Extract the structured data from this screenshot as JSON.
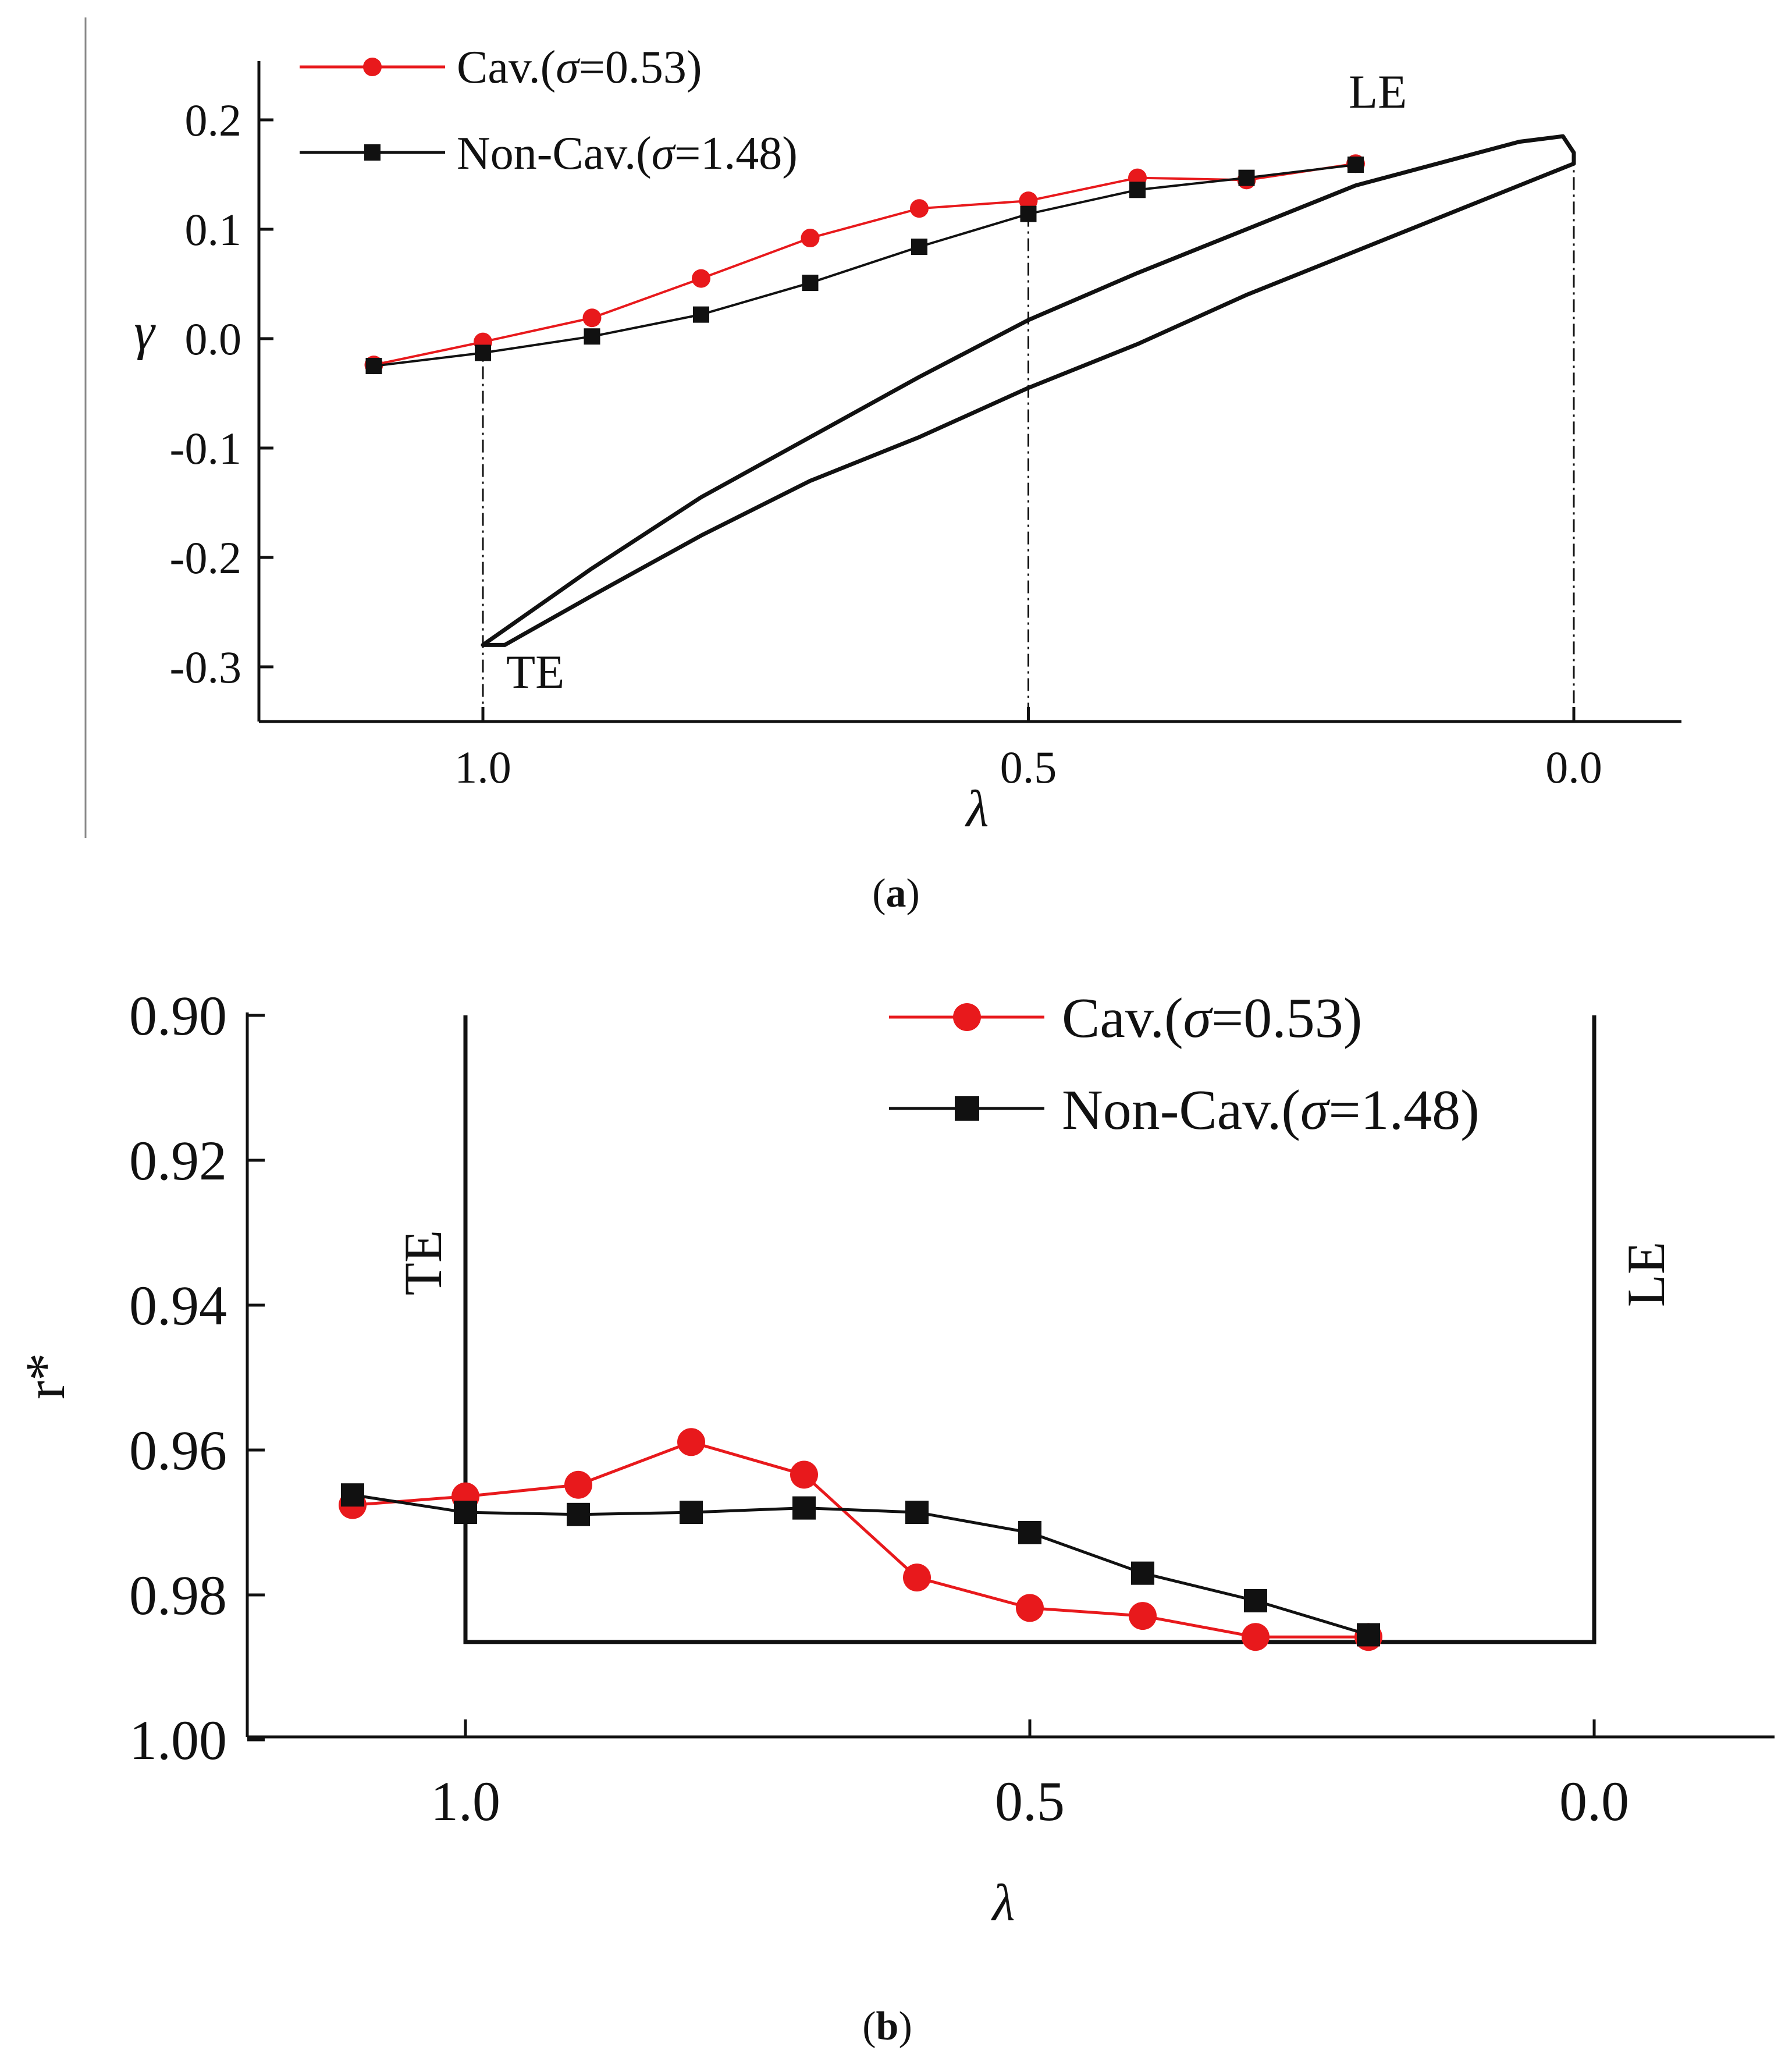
{
  "chart_data": [
    {
      "id": "a",
      "type": "line",
      "panel_label_open": "(",
      "panel_label_letter": "a",
      "panel_label_close": ")",
      "xlabel": "λ",
      "ylabel": "γ",
      "xlim": [
        1.2,
        -0.1
      ],
      "ylim": [
        -0.35,
        0.25
      ],
      "x_ticks": [
        1.0,
        0.5,
        0.0
      ],
      "x_tick_labels": [
        "1.0",
        "0.5",
        "0.0"
      ],
      "y_ticks": [
        0.2,
        0.1,
        0.0,
        -0.1,
        -0.2,
        -0.3
      ],
      "y_tick_labels": [
        "0.2",
        "0.1",
        "0.0",
        "-0.1",
        "-0.2",
        "-0.3"
      ],
      "annotations": {
        "le": "LE",
        "te": "TE"
      },
      "series": [
        {
          "name_prefix": "Cav.(",
          "name_symbol": "σ",
          "name_suffix": "=0.53)",
          "color": "#e8191c",
          "marker": "circle",
          "x": [
            1.1,
            1.0,
            0.9,
            0.8,
            0.7,
            0.6,
            0.5,
            0.4,
            0.3,
            0.2
          ],
          "y": [
            -0.024,
            -0.003,
            0.019,
            0.055,
            0.092,
            0.119,
            0.126,
            0.147,
            0.145,
            0.16
          ]
        },
        {
          "name_prefix": "Non-Cav.(",
          "name_symbol": "σ",
          "name_suffix": "=1.48)",
          "color": "#111111",
          "marker": "square",
          "x": [
            1.1,
            1.0,
            0.9,
            0.8,
            0.7,
            0.6,
            0.5,
            0.4,
            0.3,
            0.2
          ],
          "y": [
            -0.025,
            -0.013,
            0.002,
            0.022,
            0.051,
            0.084,
            0.114,
            0.136,
            0.147,
            0.159
          ]
        }
      ],
      "blade_profile": {
        "color": "#111111",
        "suction_side": [
          [
            0.0,
            0.17
          ],
          [
            0.01,
            0.185
          ],
          [
            0.05,
            0.18
          ],
          [
            0.2,
            0.14
          ],
          [
            0.3,
            0.1
          ],
          [
            0.4,
            0.06
          ],
          [
            0.5,
            0.017
          ],
          [
            0.6,
            -0.035
          ],
          [
            0.7,
            -0.09
          ],
          [
            0.8,
            -0.145
          ],
          [
            0.9,
            -0.21
          ],
          [
            1.0,
            -0.28
          ]
        ],
        "pressure_side": [
          [
            1.0,
            -0.28
          ],
          [
            0.98,
            -0.28
          ],
          [
            0.9,
            -0.235
          ],
          [
            0.8,
            -0.18
          ],
          [
            0.7,
            -0.13
          ],
          [
            0.6,
            -0.09
          ],
          [
            0.5,
            -0.045
          ],
          [
            0.4,
            -0.005
          ],
          [
            0.3,
            0.04
          ],
          [
            0.2,
            0.08
          ],
          [
            0.1,
            0.12
          ],
          [
            0.0,
            0.16
          ]
        ]
      },
      "reference_lines_x": [
        1.0,
        0.5,
        0.0
      ]
    },
    {
      "id": "b",
      "type": "line",
      "panel_label_open": "(",
      "panel_label_letter": "b",
      "panel_label_close": ")",
      "xlabel": "λ",
      "ylabel": "r*",
      "xlim": [
        1.2,
        -0.15
      ],
      "ylim": [
        1.0,
        0.9
      ],
      "y_inverted": true,
      "x_ticks": [
        1.0,
        0.5,
        0.0
      ],
      "x_tick_labels": [
        "1.0",
        "0.5",
        "0.0"
      ],
      "y_ticks": [
        0.9,
        0.92,
        0.94,
        0.96,
        0.98,
        1.0
      ],
      "y_tick_labels": [
        "0.90",
        "0.92",
        "0.94",
        "0.96",
        "0.98",
        "1.00"
      ],
      "annotations": {
        "le": "LE",
        "te": "TE"
      },
      "series": [
        {
          "name_prefix": "Cav.(",
          "name_symbol": "σ",
          "name_suffix": "=0.53)",
          "color": "#e8191c",
          "marker": "circle",
          "x": [
            1.1,
            1.0,
            0.9,
            0.8,
            0.7,
            0.6,
            0.5,
            0.4,
            0.3,
            0.2
          ],
          "y": [
            0.9676,
            0.9664,
            0.9648,
            0.9589,
            0.9634,
            0.9776,
            0.9818,
            0.9829,
            0.9858,
            0.9858
          ]
        },
        {
          "name_prefix": "Non-Cav.(",
          "name_symbol": "σ",
          "name_suffix": "=1.48)",
          "color": "#111111",
          "marker": "square",
          "x": [
            1.1,
            1.0,
            0.9,
            0.8,
            0.7,
            0.6,
            0.5,
            0.4,
            0.3,
            0.2
          ],
          "y": [
            0.9662,
            0.9686,
            0.9689,
            0.9686,
            0.968,
            0.9686,
            0.9714,
            0.977,
            0.9808,
            0.9855
          ]
        }
      ],
      "frame": {
        "x_left": 1.0,
        "x_right": 0.0,
        "y_top": 0.9,
        "y_bottom": 0.9865
      }
    }
  ]
}
